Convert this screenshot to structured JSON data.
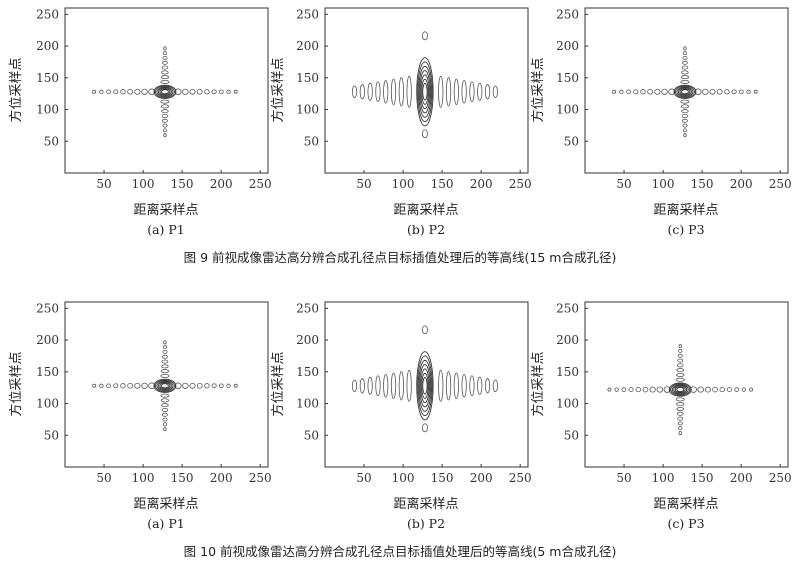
{
  "axes": {
    "xlabel": "距离采样点",
    "ylabel": "方位采样点",
    "xticks": [
      50,
      100,
      150,
      200,
      250
    ],
    "yticks": [
      50,
      100,
      150,
      200,
      250
    ],
    "xlim": [
      0,
      260
    ],
    "ylim": [
      0,
      260
    ]
  },
  "figures": [
    {
      "caption": "图 9 前视成像雷达高分辨合成孔径点目标插值处理后的等高线(15 m合成孔径)",
      "panels": [
        {
          "caption": "(a) P1",
          "pattern": "cross",
          "center": [
            128,
            128
          ]
        },
        {
          "caption": "(b) P2",
          "pattern": "blob",
          "center": [
            128,
            128
          ]
        },
        {
          "caption": "(c) P3",
          "pattern": "cross",
          "center": [
            128,
            128
          ]
        }
      ]
    },
    {
      "caption": "图 10 前视成像雷达高分辨合成孔径点目标插值处理后的等高线(5 m合成孔径)",
      "panels": [
        {
          "caption": "(a) P1",
          "pattern": "cross",
          "center": [
            128,
            128
          ]
        },
        {
          "caption": "(b) P2",
          "pattern": "blob",
          "center": [
            128,
            128
          ]
        },
        {
          "caption": "(c) P3",
          "pattern": "cross",
          "center": [
            122,
            122
          ]
        }
      ]
    }
  ]
}
